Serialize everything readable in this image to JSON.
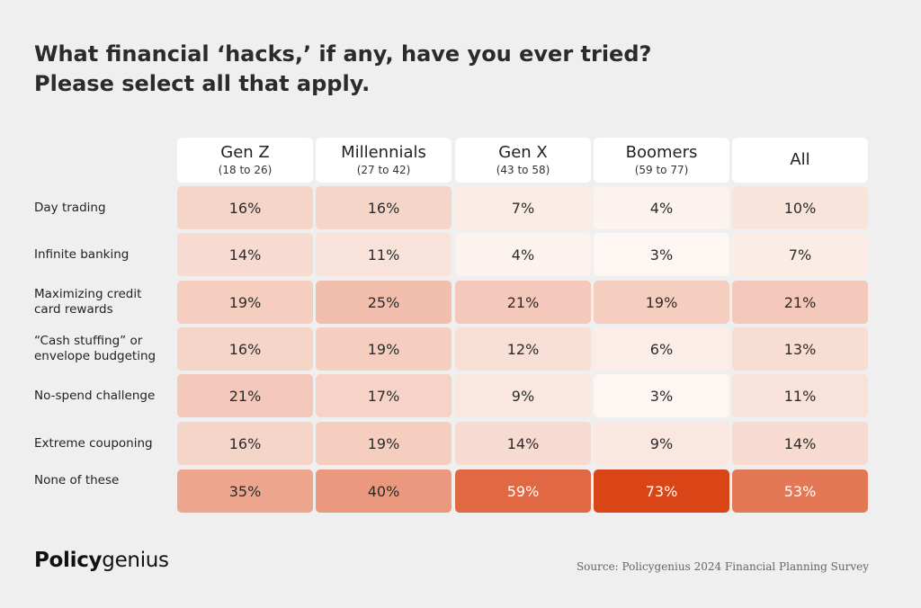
{
  "title_lines": [
    "What financial ‘hacks,’ if any, have you ever tried?",
    "Please select all that apply."
  ],
  "chart_data": {
    "type": "table",
    "columns": [
      {
        "name": "Gen Z",
        "range": "(18 to 26)"
      },
      {
        "name": "Millennials",
        "range": "(27 to 42)"
      },
      {
        "name": "Gen X",
        "range": "(43 to 58)"
      },
      {
        "name": "Boomers",
        "range": "(59 to 77)"
      },
      {
        "name": "All",
        "range": ""
      }
    ],
    "rows": [
      {
        "label": "Day trading",
        "values": [
          16,
          16,
          7,
          4,
          10
        ]
      },
      {
        "label": "Infinite banking",
        "values": [
          14,
          11,
          4,
          3,
          7
        ]
      },
      {
        "label": "Maximizing credit card rewards",
        "values": [
          19,
          25,
          21,
          19,
          21
        ]
      },
      {
        "label": "“Cash stuffing” or envelope budgeting",
        "values": [
          16,
          19,
          12,
          6,
          13
        ]
      },
      {
        "label": "No-spend challenge",
        "values": [
          21,
          17,
          9,
          3,
          11
        ]
      },
      {
        "label": "Extreme couponing",
        "values": [
          16,
          19,
          14,
          9,
          14
        ]
      },
      {
        "label": "None of these",
        "values": [
          35,
          40,
          59,
          73,
          53
        ]
      }
    ],
    "unit": "%",
    "value_range": [
      3,
      73
    ],
    "colors": {
      "low": "#fdf6f2",
      "high": "#d94517",
      "text_light": "#ffffff",
      "text_dark": "#2b2b2b"
    }
  },
  "brand": {
    "bold": "Policy",
    "regular": "genius"
  },
  "source": "Source: Policygenius 2024 Financial Planning Survey"
}
